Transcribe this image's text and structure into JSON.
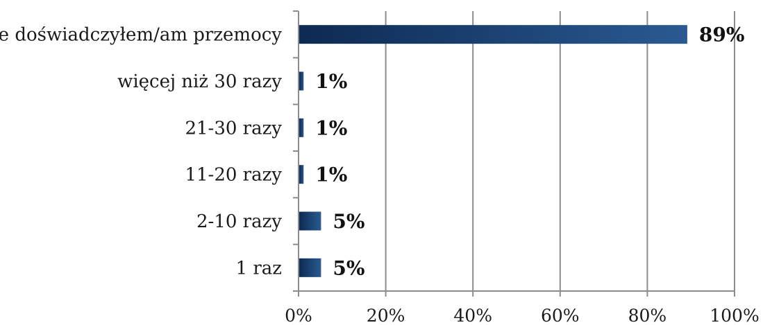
{
  "chart_data": {
    "type": "bar",
    "orientation": "horizontal",
    "categories": [
      "nie doświadczyłem/am przemocy",
      "więcej niż 30 razy",
      "21-30 razy",
      "11-20 razy",
      "2-10 razy",
      "1 raz"
    ],
    "values": [
      89,
      1,
      1,
      1,
      5,
      5
    ],
    "data_labels": [
      "89%",
      "1%",
      "1%",
      "1%",
      "5%",
      "5%"
    ],
    "x_ticks": [
      "0%",
      "20%",
      "40%",
      "60%",
      "80%",
      "100%"
    ],
    "xlim": [
      0,
      100
    ],
    "grid": true,
    "legend": "none",
    "bar_color": "#1f4e85",
    "bar_color_dark": "#0d2a52"
  }
}
